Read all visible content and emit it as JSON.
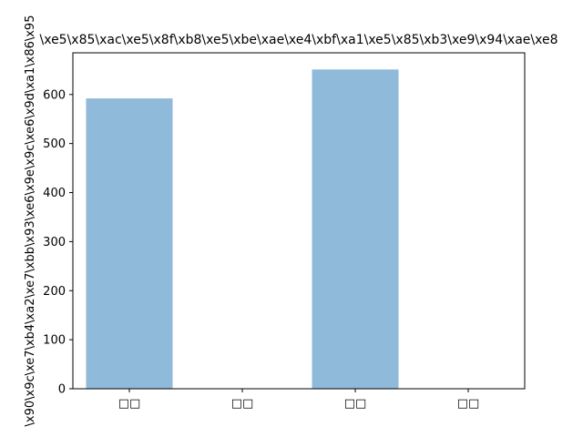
{
  "chart_data": {
    "type": "bar",
    "title": "\\xe5\\x85\\xac\\xe5\\x8f\\xb8\\xe5\\xbe\\xae\\xe4\\xbf\\xa1\\xe5\\x85\\xb3\\xe9\\x94\\xae\\xe8",
    "ylabel": "\\x90\\x9c\\xe7\\xb4\\xa2\\xe7\\xbb\\x93\\xe6\\x9e\\x9c\\xe6\\x9d\\xa1\\x86\\x95",
    "xlabel": "",
    "categories": [
      "□□",
      "□□",
      "□□",
      "□□"
    ],
    "values": [
      592,
      0,
      651,
      0
    ],
    "ylim": [
      0,
      685
    ],
    "yticks": [
      0,
      100,
      200,
      300,
      400,
      500,
      600
    ],
    "bar_color": "#8fbad9",
    "grid": false,
    "legend": "none"
  }
}
